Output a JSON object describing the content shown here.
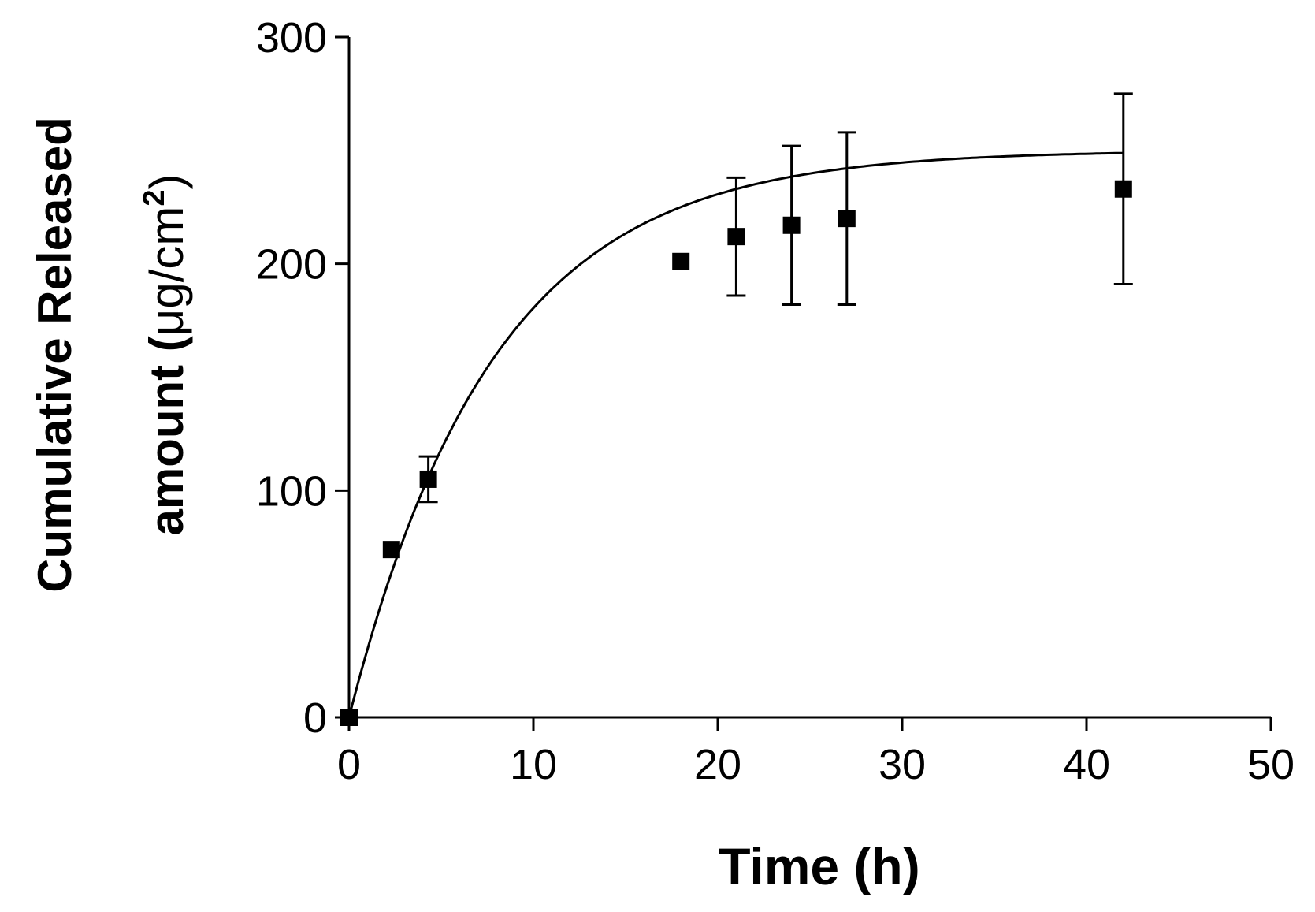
{
  "chart_data": {
    "type": "scatter",
    "xlabel": "Time (h)",
    "ylabel": {
      "line1": "Cumulative Released",
      "line2_prefix": "amount (",
      "line2_unit": "μg/cm",
      "line2_sup": "2",
      "line2_suffix": ")"
    },
    "xlim": [
      0,
      50
    ],
    "ylim": [
      0,
      300
    ],
    "xticks": [
      "0",
      "10",
      "20",
      "30",
      "40",
      "50"
    ],
    "yticks": [
      "0",
      "100",
      "200",
      "300"
    ],
    "grid": false,
    "series": [
      {
        "marker": "square",
        "points": [
          {
            "x": 0,
            "y": 0
          },
          {
            "x": 2.3,
            "y": 74
          },
          {
            "x": 4.3,
            "y": 105,
            "err": 10
          },
          {
            "x": 18,
            "y": 201
          },
          {
            "x": 21,
            "y": 212,
            "err": 26
          },
          {
            "x": 24,
            "y": 217,
            "err": 35
          },
          {
            "x": 27,
            "y": 220,
            "err": 38
          },
          {
            "x": 42,
            "y": 233,
            "err": 42
          }
        ]
      }
    ],
    "fit_curve": {
      "model": "one-phase association",
      "ymax": 250,
      "k": 0.128,
      "x_end": 42
    },
    "colors": {
      "marks": "#000000",
      "background": "#ffffff"
    }
  }
}
